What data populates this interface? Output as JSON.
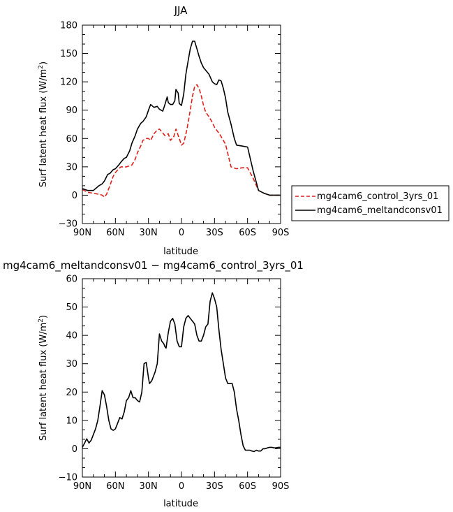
{
  "chart_data": [
    {
      "type": "line",
      "title": "JJA",
      "xlabel": "latitude",
      "ylabel": "Surf latent heat flux (W/m²)",
      "ylabel_main": "Surf latent heat flux (W/m",
      "ylabel_sup": "2",
      "ylabel_tail": ")",
      "xlim": [
        90,
        -90
      ],
      "ylim": [
        -30,
        180
      ],
      "x_ticks": [
        90,
        60,
        30,
        0,
        -30,
        -60,
        -90
      ],
      "x_tick_labels": [
        "90N",
        "60N",
        "30N",
        "0",
        "30S",
        "60S",
        "90S"
      ],
      "y_ticks": [
        -30,
        0,
        30,
        60,
        90,
        120,
        150,
        180
      ],
      "y_tick_labels": [
        "−30",
        "0",
        "30",
        "60",
        "90",
        "120",
        "150",
        "180"
      ],
      "legend_position": "right",
      "series": [
        {
          "name": "mg4cam6_control_3yrs_01",
          "color": "#e0201b",
          "dash": "dashed",
          "x": [
            90,
            85,
            80,
            75,
            72,
            70,
            68,
            65,
            62,
            60,
            57,
            55,
            50,
            45,
            42,
            40,
            37,
            35,
            32,
            30,
            28,
            25,
            22,
            20,
            17,
            15,
            12,
            10,
            7,
            5,
            2,
            0,
            -2,
            -5,
            -8,
            -10,
            -12,
            -14,
            -16,
            -18,
            -20,
            -22,
            -25,
            -28,
            -30,
            -35,
            -40,
            -45,
            -50,
            -55,
            -60,
            -65,
            -70,
            -75,
            -80,
            -85,
            -90
          ],
          "values": [
            6,
            3,
            2,
            1,
            0,
            -2,
            1,
            10,
            20,
            24,
            28,
            30,
            30,
            32,
            38,
            45,
            52,
            58,
            60,
            60,
            58,
            65,
            69,
            70,
            66,
            63,
            65,
            58,
            62,
            70,
            60,
            53,
            55,
            70,
            90,
            105,
            115,
            117,
            113,
            105,
            95,
            88,
            83,
            77,
            72,
            64,
            54,
            30,
            28,
            29,
            29,
            18,
            5,
            2,
            0,
            0,
            0
          ]
        },
        {
          "name": "mg4cam6_meltandconsv01",
          "color": "#000000",
          "dash": "solid",
          "x": [
            90,
            85,
            80,
            75,
            72,
            70,
            67,
            65,
            62,
            60,
            57,
            55,
            52,
            50,
            47,
            45,
            42,
            40,
            37,
            35,
            32,
            30,
            28,
            25,
            22,
            20,
            17,
            15,
            13,
            12,
            10,
            8,
            6,
            5,
            3,
            2,
            0,
            -2,
            -4,
            -6,
            -8,
            -10,
            -12,
            -14,
            -16,
            -18,
            -20,
            -25,
            -28,
            -30,
            -32,
            -34,
            -36,
            -38,
            -40,
            -42,
            -45,
            -48,
            -50,
            -55,
            -60,
            -65,
            -70,
            -75,
            -80,
            -85,
            -90
          ],
          "values": [
            7,
            5,
            5,
            10,
            12,
            15,
            22,
            23,
            27,
            28,
            32,
            35,
            39,
            40,
            47,
            55,
            63,
            70,
            76,
            78,
            83,
            90,
            96,
            93,
            94,
            91,
            89,
            96,
            104,
            98,
            96,
            96,
            100,
            112,
            108,
            97,
            95,
            107,
            128,
            142,
            155,
            163,
            163,
            155,
            147,
            140,
            135,
            128,
            120,
            118,
            117,
            122,
            121,
            113,
            103,
            88,
            75,
            60,
            53,
            52,
            51,
            26,
            5,
            2,
            0,
            0,
            0
          ]
        }
      ]
    },
    {
      "type": "line",
      "title": "mg4cam6_meltandconsv01 − mg4cam6_control_3yrs_01",
      "xlabel": "latitude",
      "ylabel": "Surf latent heat flux (W/m²)",
      "ylabel_main": "Surf latent heat flux (W/m",
      "ylabel_sup": "2",
      "ylabel_tail": ")",
      "xlim": [
        90,
        -90
      ],
      "ylim": [
        -10,
        60
      ],
      "x_ticks": [
        90,
        60,
        30,
        0,
        -30,
        -60,
        -90
      ],
      "x_tick_labels": [
        "90N",
        "60N",
        "30N",
        "0",
        "30S",
        "60S",
        "90S"
      ],
      "y_ticks": [
        -10,
        0,
        10,
        20,
        30,
        40,
        50,
        60
      ],
      "y_tick_labels": [
        "−10",
        "0",
        "10",
        "20",
        "30",
        "40",
        "50",
        "60"
      ],
      "series": [
        {
          "color": "#000000",
          "dash": "solid",
          "x": [
            90,
            88,
            86,
            84,
            82,
            80,
            78,
            76,
            74,
            72,
            70,
            68,
            66,
            64,
            62,
            60,
            58,
            56,
            54,
            52,
            50,
            48,
            46,
            44,
            42,
            40,
            38,
            36,
            34,
            32,
            30,
            29,
            28,
            27,
            26,
            24,
            22,
            20,
            18,
            16,
            15,
            14,
            12,
            10,
            8,
            6,
            4,
            2,
            0,
            -2,
            -4,
            -6,
            -8,
            -10,
            -12,
            -14,
            -16,
            -18,
            -20,
            -22,
            -24,
            -26,
            -28,
            -30,
            -32,
            -34,
            -36,
            -38,
            -40,
            -42,
            -44,
            -46,
            -48,
            -50,
            -52,
            -54,
            -56,
            -58,
            -60,
            -62,
            -64,
            -66,
            -68,
            -70,
            -72,
            -74,
            -76,
            -78,
            -80,
            -82,
            -84,
            -86,
            -88,
            -90
          ],
          "values": [
            0.5,
            2,
            3.5,
            2,
            3,
            5,
            7,
            10,
            15,
            20.5,
            19,
            15,
            10,
            7,
            6.5,
            7,
            9,
            11,
            10.5,
            13,
            17,
            18,
            20.5,
            18,
            18,
            17,
            16.5,
            20,
            30,
            30.5,
            25,
            23,
            23.5,
            24,
            25,
            27,
            30,
            40.5,
            38,
            37,
            36,
            35.5,
            41,
            45,
            46,
            44,
            38,
            36,
            36,
            43,
            46,
            47,
            46,
            45,
            44,
            40,
            38,
            38,
            40,
            43,
            44,
            52,
            55,
            53,
            50,
            42,
            35,
            30,
            25,
            23,
            23,
            23,
            20,
            14,
            10,
            5,
            1,
            -0.5,
            -0.5,
            -0.5,
            -0.8,
            -1,
            -0.5,
            -0.8,
            -0.8,
            0,
            0,
            0.3,
            0.5,
            0.5,
            0.3,
            0.3,
            0.5,
            0.5
          ]
        }
      ]
    }
  ]
}
